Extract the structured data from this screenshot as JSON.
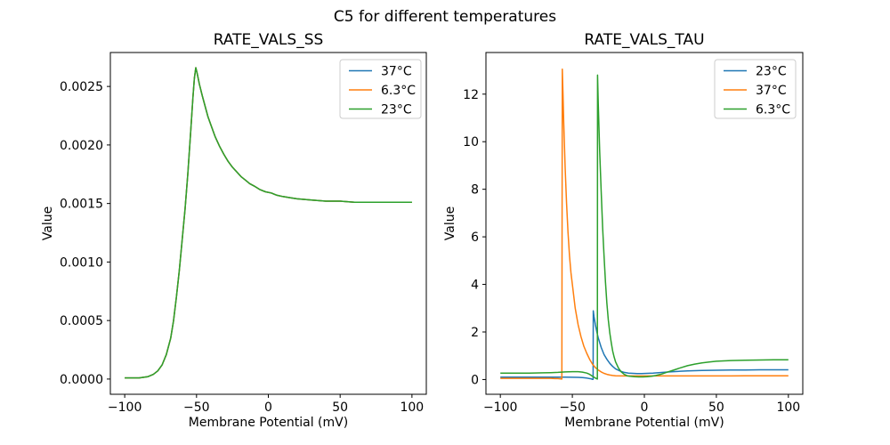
{
  "figure": {
    "title": "C5 for different temperatures",
    "background": "#ffffff",
    "palette": {
      "blue": "#1f77b4",
      "orange": "#ff7f0e",
      "green": "#2ca02c"
    }
  },
  "chart_data": [
    {
      "type": "line",
      "title": "RATE_VALS_SS",
      "xlabel": "Membrane Potential (mV)",
      "ylabel": "Value",
      "xlim": [
        -110,
        110
      ],
      "ylim": [
        -0.00013,
        0.00279
      ],
      "xticks": [
        -100,
        -50,
        0,
        50,
        100
      ],
      "xtick_labels": [
        "−100",
        "−50",
        "0",
        "50",
        "100"
      ],
      "yticks": [
        0.0,
        0.0005,
        0.001,
        0.0015,
        0.002,
        0.0025
      ],
      "ytick_labels": [
        "0.0000",
        "0.0005",
        "0.0010",
        "0.0015",
        "0.0020",
        "0.0025"
      ],
      "grid": false,
      "legend_position": "upper right",
      "note": "All three temperature curves coincide exactly; peak 0.00266 at −50 mV, plateau 0.00151",
      "series": [
        {
          "name": "37°C",
          "color": "#1f77b4",
          "x": [
            -100,
            -90,
            -84,
            -80,
            -77,
            -74,
            -71,
            -68,
            -66,
            -64,
            -62,
            -60,
            -58,
            -56,
            -54,
            -52.5,
            -51.5,
            -50.5,
            -49.5,
            -48,
            -46,
            -44,
            -42,
            -40,
            -37,
            -34,
            -31,
            -28,
            -25,
            -22,
            -19,
            -16,
            -13,
            -10,
            -6,
            -2,
            2,
            6,
            10,
            15,
            20,
            30,
            40,
            50,
            60,
            80,
            100
          ],
          "y": [
            1e-05,
            1e-05,
            2e-05,
            4e-05,
            7e-05,
            0.00012,
            0.00021,
            0.00035,
            0.0005,
            0.0007,
            0.00093,
            0.00119,
            0.00145,
            0.00176,
            0.00213,
            0.00241,
            0.00257,
            0.00266,
            0.00261,
            0.00252,
            0.00242,
            0.00233,
            0.00224,
            0.00217,
            0.00207,
            0.00199,
            0.00192,
            0.00186,
            0.00181,
            0.00177,
            0.00173,
            0.0017,
            0.00167,
            0.00165,
            0.00162,
            0.0016,
            0.00159,
            0.00157,
            0.00156,
            0.00155,
            0.00154,
            0.00153,
            0.00152,
            0.00152,
            0.00151,
            0.00151,
            0.00151
          ]
        },
        {
          "name": "6.3°C",
          "color": "#ff7f0e",
          "x": [
            -100,
            -90,
            -84,
            -80,
            -77,
            -74,
            -71,
            -68,
            -66,
            -64,
            -62,
            -60,
            -58,
            -56,
            -54,
            -52.5,
            -51.5,
            -50.5,
            -49.5,
            -48,
            -46,
            -44,
            -42,
            -40,
            -37,
            -34,
            -31,
            -28,
            -25,
            -22,
            -19,
            -16,
            -13,
            -10,
            -6,
            -2,
            2,
            6,
            10,
            15,
            20,
            30,
            40,
            50,
            60,
            80,
            100
          ],
          "y": [
            1e-05,
            1e-05,
            2e-05,
            4e-05,
            7e-05,
            0.00012,
            0.00021,
            0.00035,
            0.0005,
            0.0007,
            0.00093,
            0.00119,
            0.00145,
            0.00176,
            0.00213,
            0.00241,
            0.00257,
            0.00266,
            0.00261,
            0.00252,
            0.00242,
            0.00233,
            0.00224,
            0.00217,
            0.00207,
            0.00199,
            0.00192,
            0.00186,
            0.00181,
            0.00177,
            0.00173,
            0.0017,
            0.00167,
            0.00165,
            0.00162,
            0.0016,
            0.00159,
            0.00157,
            0.00156,
            0.00155,
            0.00154,
            0.00153,
            0.00152,
            0.00152,
            0.00151,
            0.00151,
            0.00151
          ]
        },
        {
          "name": "23°C",
          "color": "#2ca02c",
          "x": [
            -100,
            -90,
            -84,
            -80,
            -77,
            -74,
            -71,
            -68,
            -66,
            -64,
            -62,
            -60,
            -58,
            -56,
            -54,
            -52.5,
            -51.5,
            -50.5,
            -49.5,
            -48,
            -46,
            -44,
            -42,
            -40,
            -37,
            -34,
            -31,
            -28,
            -25,
            -22,
            -19,
            -16,
            -13,
            -10,
            -6,
            -2,
            2,
            6,
            10,
            15,
            20,
            30,
            40,
            50,
            60,
            80,
            100
          ],
          "y": [
            1e-05,
            1e-05,
            2e-05,
            4e-05,
            7e-05,
            0.00012,
            0.00021,
            0.00035,
            0.0005,
            0.0007,
            0.00093,
            0.00119,
            0.00145,
            0.00176,
            0.00213,
            0.00241,
            0.00257,
            0.00266,
            0.00261,
            0.00252,
            0.00242,
            0.00233,
            0.00224,
            0.00217,
            0.00207,
            0.00199,
            0.00192,
            0.00186,
            0.00181,
            0.00177,
            0.00173,
            0.0017,
            0.00167,
            0.00165,
            0.00162,
            0.0016,
            0.00159,
            0.00157,
            0.00156,
            0.00155,
            0.00154,
            0.00153,
            0.00152,
            0.00152,
            0.00151,
            0.00151,
            0.00151
          ]
        }
      ]
    },
    {
      "type": "line",
      "title": "RATE_VALS_TAU",
      "xlabel": "Membrane Potential (mV)",
      "ylabel": "Value",
      "xlim": [
        -110,
        110
      ],
      "ylim": [
        -0.62,
        13.75
      ],
      "xticks": [
        -100,
        -50,
        0,
        50,
        100
      ],
      "xtick_labels": [
        "−100",
        "−50",
        "0",
        "50",
        "100"
      ],
      "yticks": [
        0,
        2,
        4,
        6,
        8,
        10,
        12
      ],
      "ytick_labels": [
        "0",
        "2",
        "4",
        "6",
        "8",
        "10",
        "12"
      ],
      "grid": false,
      "legend_position": "upper right",
      "note": "Narrow spikes: 37°C peaks 13.05 at −57 mV, 6.3°C peaks 12.8 at −32.5 mV, 23°C peaks 2.89 at −35.5 mV",
      "series": [
        {
          "name": "23°C",
          "color": "#1f77b4",
          "x": [
            -100,
            -90,
            -80,
            -70,
            -60,
            -55,
            -50,
            -46,
            -43,
            -40,
            -38,
            -37,
            -36.2,
            -35.6,
            -35.5,
            -35,
            -34,
            -33,
            -32,
            -30,
            -28,
            -26,
            -24,
            -22,
            -20,
            -17,
            -14,
            -11,
            -8,
            -5,
            -2,
            2,
            6,
            10,
            15,
            20,
            25,
            30,
            35,
            40,
            50,
            60,
            70,
            80,
            90,
            100
          ],
          "y": [
            0.1,
            0.1,
            0.1,
            0.1,
            0.1,
            0.1,
            0.095,
            0.09,
            0.08,
            0.06,
            0.04,
            0.03,
            0.01,
            0.01,
            2.89,
            2.65,
            2.3,
            2.0,
            1.75,
            1.35,
            1.05,
            0.85,
            0.68,
            0.55,
            0.45,
            0.36,
            0.3,
            0.27,
            0.26,
            0.25,
            0.25,
            0.26,
            0.27,
            0.29,
            0.31,
            0.33,
            0.35,
            0.36,
            0.37,
            0.38,
            0.39,
            0.4,
            0.4,
            0.41,
            0.41,
            0.41
          ]
        },
        {
          "name": "37°C",
          "color": "#ff7f0e",
          "x": [
            -100,
            -90,
            -80,
            -70,
            -65,
            -62,
            -60,
            -58.5,
            -57.3,
            -57,
            -56.5,
            -56,
            -55,
            -54,
            -53,
            -52,
            -51,
            -50,
            -48,
            -46,
            -44,
            -42,
            -40,
            -38,
            -36,
            -34,
            -32,
            -30,
            -28,
            -26,
            -24,
            -22,
            -20,
            -15,
            -10,
            -5,
            0,
            10,
            20,
            30,
            40,
            50,
            60,
            70,
            80,
            90,
            100
          ],
          "y": [
            0.05,
            0.05,
            0.05,
            0.05,
            0.05,
            0.04,
            0.04,
            0.03,
            0.02,
            13.05,
            12.0,
            10.8,
            8.9,
            7.4,
            6.2,
            5.2,
            4.5,
            4.0,
            3.0,
            2.3,
            1.8,
            1.4,
            1.1,
            0.85,
            0.65,
            0.5,
            0.4,
            0.32,
            0.26,
            0.22,
            0.19,
            0.17,
            0.16,
            0.15,
            0.15,
            0.15,
            0.15,
            0.15,
            0.15,
            0.15,
            0.15,
            0.15,
            0.15,
            0.16,
            0.16,
            0.16,
            0.16
          ]
        },
        {
          "name": "6.3°C",
          "color": "#2ca02c",
          "x": [
            -100,
            -90,
            -80,
            -70,
            -65,
            -60,
            -55,
            -50,
            -46,
            -43,
            -40,
            -38,
            -36,
            -34,
            -33,
            -32.6,
            -32.5,
            -32,
            -31,
            -30,
            -29,
            -28,
            -27,
            -26,
            -25,
            -24,
            -23,
            -22,
            -21,
            -20,
            -18,
            -16,
            -14,
            -12,
            -10,
            -7,
            -4,
            -1,
            2,
            5,
            8,
            12,
            16,
            20,
            25,
            30,
            35,
            40,
            45,
            50,
            60,
            70,
            80,
            90,
            100
          ],
          "y": [
            0.27,
            0.27,
            0.27,
            0.28,
            0.29,
            0.3,
            0.32,
            0.33,
            0.33,
            0.31,
            0.27,
            0.22,
            0.14,
            0.06,
            0.03,
            0.02,
            12.8,
            11.6,
            9.6,
            7.9,
            6.4,
            5.2,
            4.1,
            3.2,
            2.5,
            1.95,
            1.55,
            1.2,
            0.95,
            0.75,
            0.48,
            0.32,
            0.22,
            0.16,
            0.14,
            0.12,
            0.11,
            0.11,
            0.12,
            0.14,
            0.17,
            0.23,
            0.31,
            0.39,
            0.49,
            0.58,
            0.65,
            0.7,
            0.74,
            0.77,
            0.8,
            0.81,
            0.82,
            0.83,
            0.83
          ]
        }
      ]
    }
  ]
}
